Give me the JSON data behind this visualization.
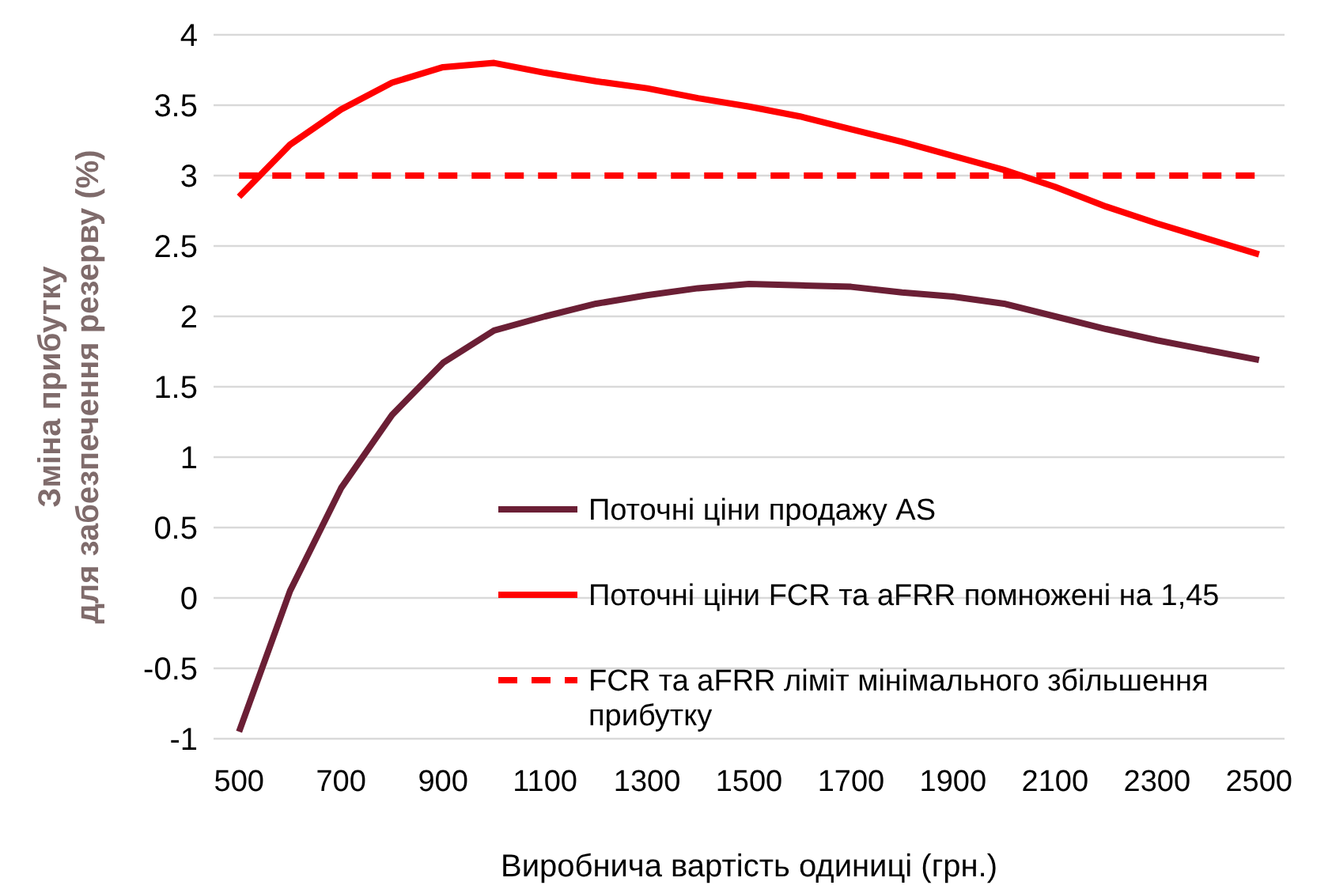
{
  "chart_data": {
    "type": "line",
    "xlabel": "Виробнича вартість одиниці (грн.)",
    "ylabel": "Зміна прибутку\nдля забезпечення резерву (%)",
    "x": [
      500,
      600,
      700,
      800,
      900,
      1000,
      1100,
      1200,
      1300,
      1400,
      1500,
      1600,
      1700,
      1800,
      1900,
      2000,
      2100,
      2200,
      2300,
      2400,
      2500
    ],
    "xlim": [
      450,
      2550
    ],
    "xticks": [
      500,
      700,
      900,
      1100,
      1300,
      1500,
      1700,
      1900,
      2100,
      2300,
      2500
    ],
    "ylim": [
      -1,
      4
    ],
    "yticks": [
      -1,
      -0.5,
      0,
      0.5,
      1,
      1.5,
      2,
      2.5,
      3,
      3.5,
      4
    ],
    "grid": "y",
    "legend": "bottom right",
    "marker": "none",
    "series": [
      {
        "name": "Поточні ціни продажу AS",
        "color": "#6b1f35",
        "line_style": "solid",
        "values": [
          -0.95,
          0.05,
          0.78,
          1.3,
          1.67,
          1.9,
          2.0,
          2.09,
          2.15,
          2.2,
          2.23,
          2.22,
          2.21,
          2.17,
          2.14,
          2.09,
          2.0,
          1.91,
          1.83,
          1.76,
          1.69
        ]
      },
      {
        "name": "Поточні ціни FCR та aFRR помножені на 1,45",
        "color": "#ff0000",
        "line_style": "solid",
        "values": [
          2.85,
          3.22,
          3.47,
          3.66,
          3.77,
          3.8,
          3.73,
          3.67,
          3.62,
          3.55,
          3.49,
          3.42,
          3.33,
          3.24,
          3.14,
          3.04,
          2.92,
          2.78,
          2.66,
          2.55,
          2.44
        ]
      },
      {
        "name": "FCR та aFRR ліміт мінімального збільшення прибутку",
        "color": "#ff0000",
        "line_style": "dashed",
        "values": [
          3,
          3,
          3,
          3,
          3,
          3,
          3,
          3,
          3,
          3,
          3,
          3,
          3,
          3,
          3,
          3,
          3,
          3,
          3,
          3,
          3
        ]
      }
    ]
  }
}
